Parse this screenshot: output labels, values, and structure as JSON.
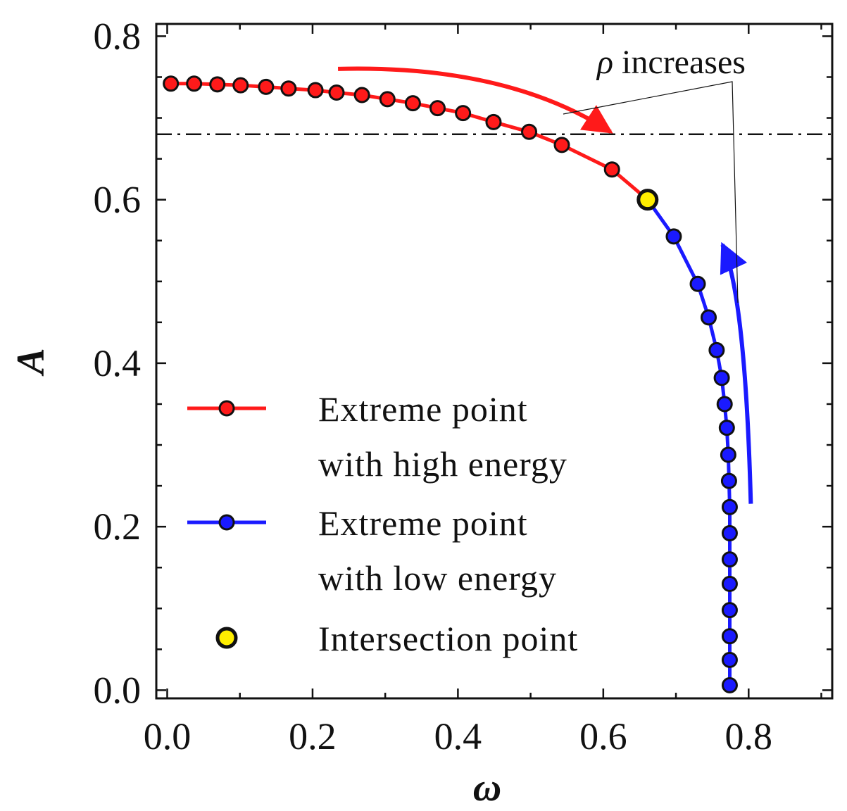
{
  "chart_data": {
    "type": "line",
    "title": "",
    "xlabel": "ω",
    "ylabel": "A",
    "xlim": [
      -0.015,
      0.915
    ],
    "ylim": [
      -0.01,
      0.815
    ],
    "x_ticks": [
      "0.0",
      "0.2",
      "0.4",
      "0.6",
      "0.8"
    ],
    "y_ticks": [
      "0.0",
      "0.2",
      "0.4",
      "0.6",
      "0.8"
    ],
    "grid": false,
    "reference_line": {
      "y": 0.68,
      "style": "dash-dot"
    },
    "annotation": {
      "text": "increases",
      "symbol": "ρ"
    },
    "legend": {
      "position": "lower-left",
      "entries": [
        {
          "line1": "Extreme point",
          "line2": "with high energy"
        },
        {
          "line1": "Extreme point",
          "line2": "with low energy"
        },
        {
          "line1": "Intersection point",
          "line2": ""
        }
      ]
    },
    "colors": {
      "high": "#ff1a1a",
      "low": "#1a1aff",
      "intersection": "#ffee00",
      "edge": "#111111"
    },
    "series": [
      {
        "name": "Extreme point with high energy",
        "points": [
          [
            0.005,
            0.742
          ],
          [
            0.037,
            0.742
          ],
          [
            0.069,
            0.741
          ],
          [
            0.101,
            0.74
          ],
          [
            0.136,
            0.738
          ],
          [
            0.167,
            0.736
          ],
          [
            0.204,
            0.734
          ],
          [
            0.233,
            0.731
          ],
          [
            0.268,
            0.728
          ],
          [
            0.303,
            0.723
          ],
          [
            0.338,
            0.718
          ],
          [
            0.372,
            0.712
          ],
          [
            0.407,
            0.706
          ],
          [
            0.449,
            0.695
          ],
          [
            0.498,
            0.683
          ],
          [
            0.543,
            0.667
          ],
          [
            0.612,
            0.637
          ],
          [
            0.661,
            0.6
          ]
        ]
      },
      {
        "name": "Extreme point with low energy",
        "points": [
          [
            0.661,
            0.6
          ],
          [
            0.697,
            0.555
          ],
          [
            0.73,
            0.497
          ],
          [
            0.745,
            0.456
          ],
          [
            0.756,
            0.416
          ],
          [
            0.763,
            0.382
          ],
          [
            0.767,
            0.35
          ],
          [
            0.77,
            0.321
          ],
          [
            0.772,
            0.288
          ],
          [
            0.773,
            0.256
          ],
          [
            0.774,
            0.224
          ],
          [
            0.774,
            0.192
          ],
          [
            0.774,
            0.16
          ],
          [
            0.774,
            0.13
          ],
          [
            0.774,
            0.098
          ],
          [
            0.774,
            0.066
          ],
          [
            0.774,
            0.037
          ],
          [
            0.774,
            0.006
          ]
        ]
      },
      {
        "name": "Intersection point",
        "points": [
          [
            0.661,
            0.6
          ]
        ]
      }
    ],
    "arrows": [
      {
        "name": "high-energy-trend",
        "from": [
          0.235,
          0.76
        ],
        "to": [
          0.61,
          0.683
        ]
      },
      {
        "name": "low-energy-trend",
        "from": [
          0.803,
          0.228
        ],
        "to": [
          0.764,
          0.545
        ]
      }
    ]
  }
}
